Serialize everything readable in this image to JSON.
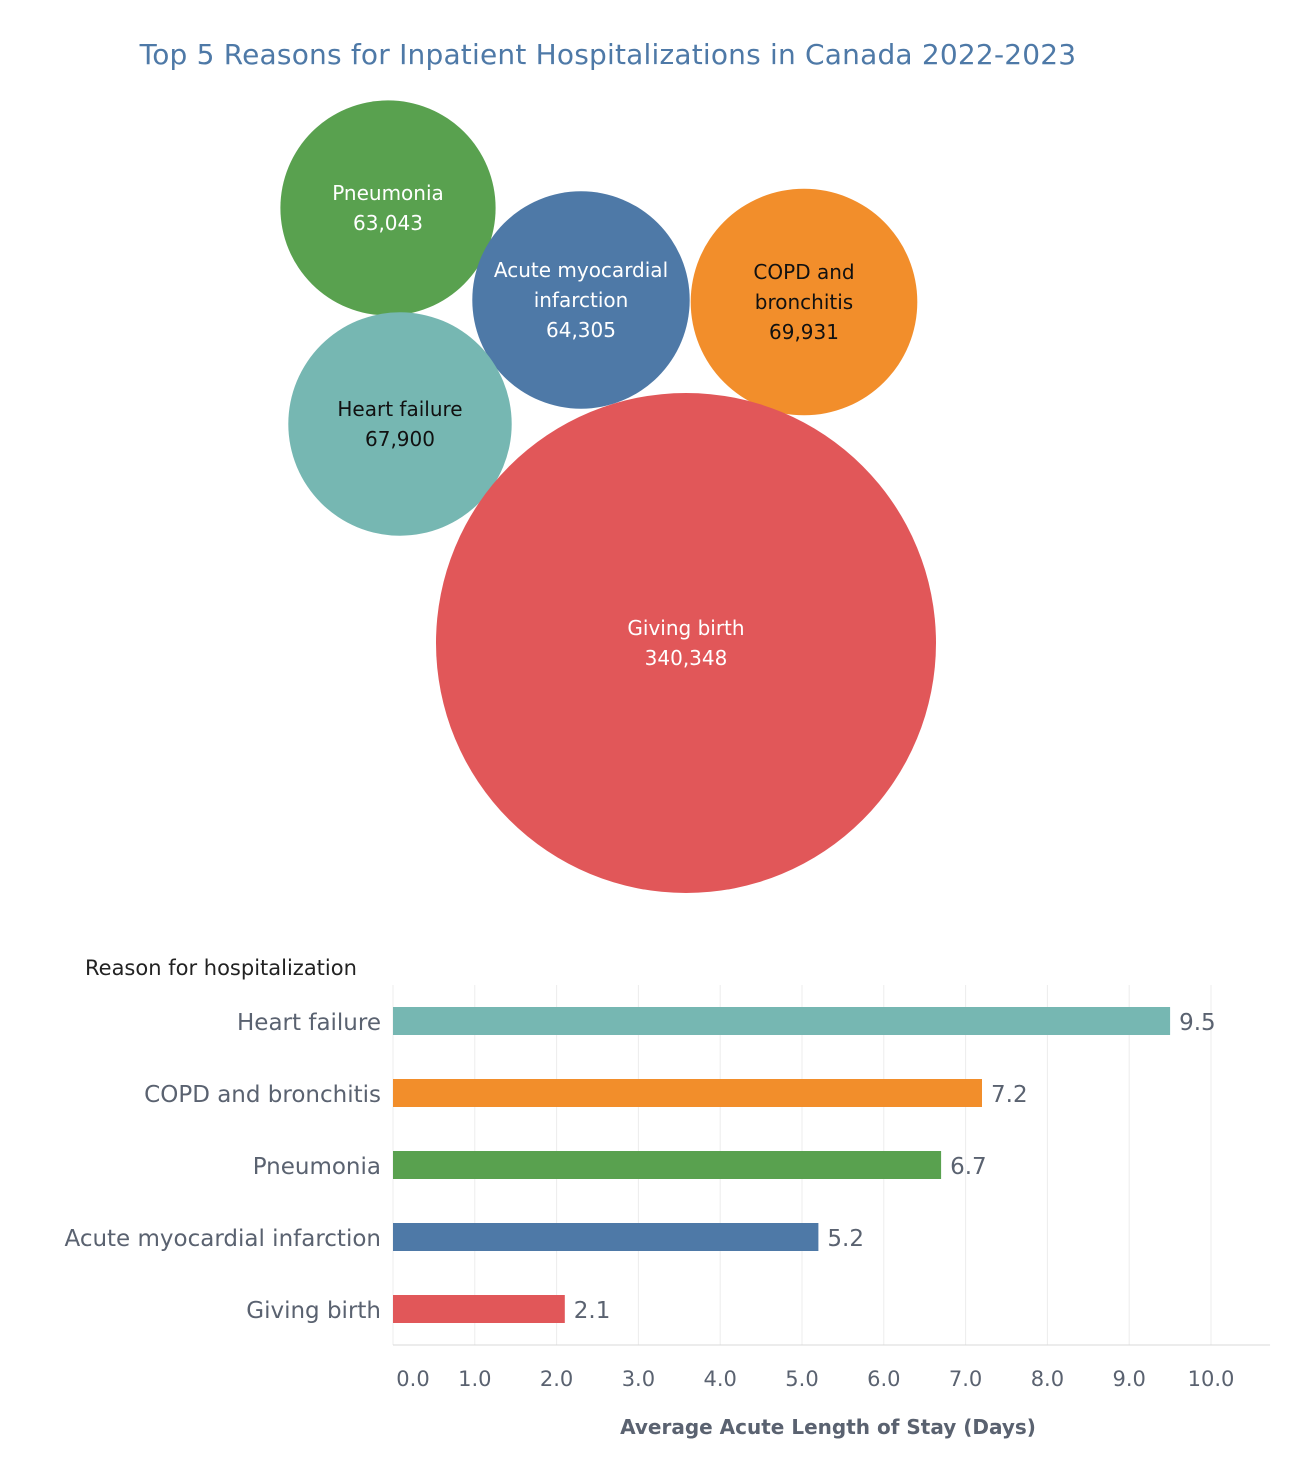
{
  "chart_data": [
    {
      "type": "bubble",
      "title": "Top 5 Reasons for Inpatient Hospitalizations in Canada 2022-2023",
      "items": [
        {
          "name": "Pneumonia",
          "label_lines": [
            "Pneumonia",
            "63,043"
          ],
          "value": 63043,
          "color": "#59a14f",
          "text_color": "#ffffff"
        },
        {
          "name": "Acute myocardial infarction",
          "label_lines": [
            "Acute myocardial",
            "infarction",
            "64,305"
          ],
          "value": 64305,
          "color": "#4e79a7",
          "text_color": "#ffffff"
        },
        {
          "name": "COPD and bronchitis",
          "label_lines": [
            "COPD and",
            "bronchitis",
            "69,931"
          ],
          "value": 69931,
          "color": "#f28e2b",
          "text_color": "#111111"
        },
        {
          "name": "Heart failure",
          "label_lines": [
            "Heart failure",
            "67,900"
          ],
          "value": 67900,
          "color": "#76b7b2",
          "text_color": "#111111"
        },
        {
          "name": "Giving birth",
          "label_lines": [
            "Giving birth",
            "340,348"
          ],
          "value": 340348,
          "color": "#e15759",
          "text_color": "#ffffff"
        }
      ]
    },
    {
      "type": "bar",
      "orientation": "horizontal",
      "header": "Reason for hospitalization",
      "categories": [
        "Heart failure",
        "COPD and bronchitis",
        "Pneumonia",
        "Acute myocardial infarction",
        "Giving birth"
      ],
      "values": [
        9.5,
        7.2,
        6.7,
        5.2,
        2.1
      ],
      "value_labels": [
        "9.5",
        "7.2",
        "6.7",
        "5.2",
        "2.1"
      ],
      "colors": [
        "#76b7b2",
        "#f28e2b",
        "#59a14f",
        "#4e79a7",
        "#e15759"
      ],
      "xlabel": "Average Acute Length of Stay (Days)",
      "xlim": [
        0,
        10.6
      ],
      "ticks": [
        0,
        1,
        2,
        3,
        4,
        5,
        6,
        7,
        8,
        9,
        10
      ],
      "tick_labels": [
        "0.0",
        "1.0",
        "2.0",
        "3.0",
        "4.0",
        "5.0",
        "6.0",
        "7.0",
        "8.0",
        "9.0",
        "10.0"
      ],
      "grid": true
    }
  ]
}
